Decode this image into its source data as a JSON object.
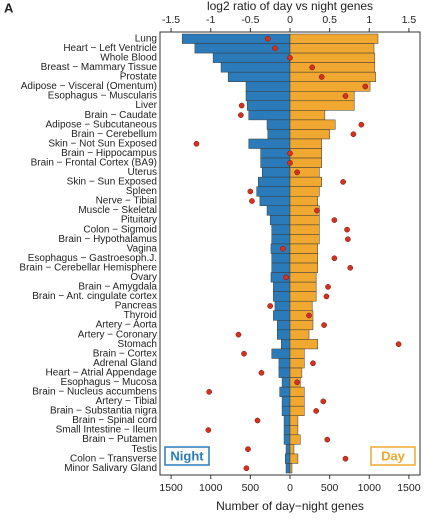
{
  "panel_label": "A",
  "chart_data": {
    "type": "butterfly",
    "title": "log2 ratio of day vs night genes",
    "xlabel": "Number of day−night genes",
    "categories": [
      "Lung",
      "Heart − Left Ventricle",
      "Whole Blood",
      "Breast − Mammary Tissue",
      "Prostate",
      "Adipose − Visceral (Omentum)",
      "Esophagus − Muscularis",
      "Liver",
      "Brain − Caudate",
      "Adipose − Subcutaneous",
      "Brain − Cerebellum",
      "Skin − Not Sun Exposed",
      "Brain − Hippocampus",
      "Brain − Frontal Cortex (BA9)",
      "Uterus",
      "Skin − Sun Exposed",
      "Spleen",
      "Nerve − Tibial",
      "Muscle − Skeletal",
      "Pituitary",
      "Colon − Sigmoid",
      "Brain − Hypothalamus",
      "Vagina",
      "Esophagus − Gastroesoph.J.",
      "Brain − Cerebellar Hemisphere",
      "Ovary",
      "Brain − Amygdala",
      "Brain − Ant. cingulate cortex",
      "Pancreas",
      "Thyroid",
      "Artery − Aorta",
      "Artery − Coronary",
      "Stomach",
      "Brain − Cortex",
      "Adrenal Gland",
      "Heart − Atrial Appendage",
      "Esophagus − Mucosa",
      "Brain − Nucleus accumbens",
      "Artery − Tibial",
      "Brain − Substantia nigra",
      "Brain − Spinal cord",
      "Small Intestine − Ileum",
      "Brain − Putamen",
      "Testis",
      "Colon − Transverse",
      "Minor Salivary Gland"
    ],
    "series": [
      {
        "name": "Night",
        "color": "#2b7bba",
        "values": [
          -1360,
          -1200,
          -970,
          -870,
          -780,
          -555,
          -555,
          -540,
          -520,
          -290,
          -280,
          -520,
          -370,
          -370,
          -350,
          -400,
          -420,
          -380,
          -290,
          -250,
          -230,
          -230,
          -240,
          -230,
          -230,
          -240,
          -210,
          -210,
          -190,
          -210,
          -160,
          -160,
          -110,
          -230,
          -140,
          -140,
          -100,
          -130,
          -100,
          -100,
          -75,
          -75,
          -75,
          -50,
          -60,
          -50
        ]
      },
      {
        "name": "Day",
        "color": "#f0a830",
        "values": [
          1110,
          1060,
          1070,
          1070,
          1080,
          1010,
          810,
          810,
          440,
          570,
          500,
          400,
          400,
          400,
          370,
          400,
          370,
          350,
          370,
          370,
          370,
          370,
          350,
          350,
          350,
          330,
          330,
          330,
          280,
          290,
          290,
          240,
          350,
          180,
          180,
          150,
          130,
          180,
          180,
          180,
          100,
          100,
          130,
          50,
          100,
          25
        ]
      }
    ],
    "points": {
      "color": "#d7301f",
      "axis": "x2",
      "values": [
        -0.28,
        -0.19,
        0.0,
        0.28,
        0.4,
        0.95,
        0.7,
        -0.61,
        -0.62,
        0.9,
        0.8,
        -1.18,
        0.0,
        0.0,
        0.09,
        0.67,
        -0.5,
        -0.48,
        0.34,
        0.56,
        0.72,
        0.73,
        -0.09,
        0.56,
        0.76,
        -0.05,
        0.48,
        0.46,
        -0.25,
        0.24,
        0.43,
        -0.65,
        1.37,
        -0.58,
        0.29,
        -0.36,
        0.09,
        -1.02,
        0.42,
        0.33,
        -0.41,
        -1.03,
        0.47,
        -0.53,
        0.7,
        -0.55
      ]
    },
    "xlim": [
      -1640,
      1640
    ],
    "xticks": [
      {
        "value": -1500,
        "label": "1500"
      },
      {
        "value": -1000,
        "label": "1000"
      },
      {
        "value": -500,
        "label": "500"
      },
      0,
      500,
      1000,
      1500
    ],
    "x2lim": [
      -1.64,
      1.64
    ],
    "x2ticks": [
      -1.5,
      -1,
      -0.5,
      0,
      0.5,
      1,
      1.5
    ]
  }
}
